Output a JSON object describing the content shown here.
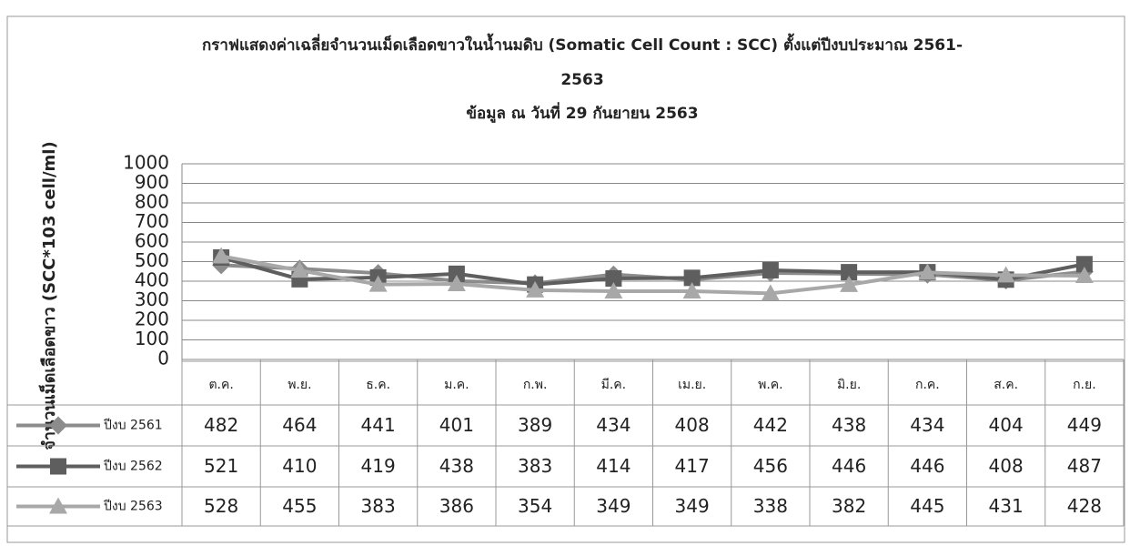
{
  "chart_data": {
    "type": "line",
    "title": "กราฟแสดงค่าเฉลี่ยจำนวนเม็ดเลือดขาวในน้ำนมดิบ (Somatic Cell Count : SCC) ตั้งแต่ปีงบประมาณ 2561-2563",
    "subtitle": "ข้อมูล ณ วันที่ 29 กันยายน 2563",
    "y_label": "จำนวนเม็ดเลือดขาว (SCC*103 cell/ml)",
    "categories": [
      "ต.ค.",
      "พ.ย.",
      "ธ.ค.",
      "ม.ค.",
      "ก.พ.",
      "มี.ค.",
      "เม.ย.",
      "พ.ค.",
      "มิ.ย.",
      "ก.ค.",
      "ส.ค.",
      "ก.ย."
    ],
    "series": [
      {
        "name": "ปีงบ 2561",
        "color": "#8c8c8c",
        "marker": "diamond",
        "values": [
          482,
          464,
          441,
          401,
          389,
          434,
          408,
          442,
          438,
          434,
          404,
          449
        ]
      },
      {
        "name": "ปีงบ 2562",
        "color": "#5e5e5e",
        "marker": "square",
        "values": [
          521,
          410,
          419,
          438,
          383,
          414,
          417,
          456,
          446,
          446,
          408,
          487
        ]
      },
      {
        "name": "ปีงบ 2563",
        "color": "#a8a8a8",
        "marker": "triangle",
        "values": [
          528,
          455,
          383,
          386,
          354,
          349,
          349,
          338,
          382,
          445,
          431,
          428
        ]
      }
    ],
    "ylim": [
      0,
      1000
    ],
    "yticks": [
      0,
      100,
      200,
      300,
      400,
      500,
      600,
      700,
      800,
      900,
      1000
    ],
    "grid": true
  }
}
